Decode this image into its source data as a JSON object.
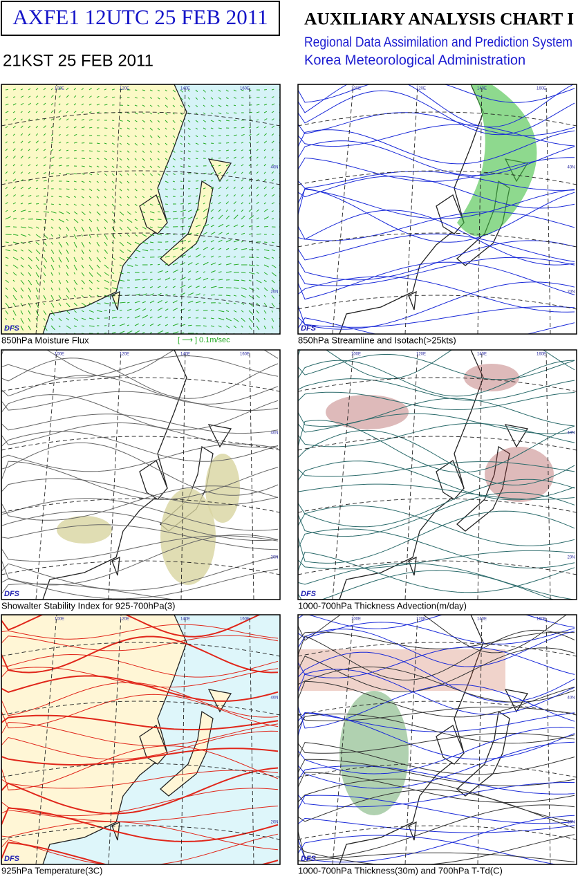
{
  "header": {
    "title_box": "AXFE1  12UTC 25 FEB 2011",
    "local_time": "21KST 25 FEB 2011",
    "chart_title": "AUXILIARY ANALYSIS CHART I",
    "subtitle_line1": "Regional Data Assimilation and Prediction System",
    "subtitle_line2": "Korea Meteorological Administration"
  },
  "map_labels": [
    "100E",
    "120E",
    "140E",
    "160E",
    "40N",
    "20N"
  ],
  "panels": [
    {
      "caption": "850hPa Moisture Flux",
      "legend": "[ ⟶ ] 0.1m/sec",
      "logo": "DFS"
    },
    {
      "caption": "850hPa Streamline and Isotach(>25kts)",
      "logo": "DFS"
    },
    {
      "caption": "Showalter Stability Index for 925-700hPa(3)",
      "logo": "DFS"
    },
    {
      "caption": "1000-700hPa Thickness Advection(m/day)",
      "logo": "DFS"
    },
    {
      "caption": "925hPa Temperature(3C)",
      "logo": "DFS"
    },
    {
      "caption": "1000-700hPa Thickness(30m) and 700hPa T-Td(C)",
      "logo": "DFS"
    }
  ]
}
